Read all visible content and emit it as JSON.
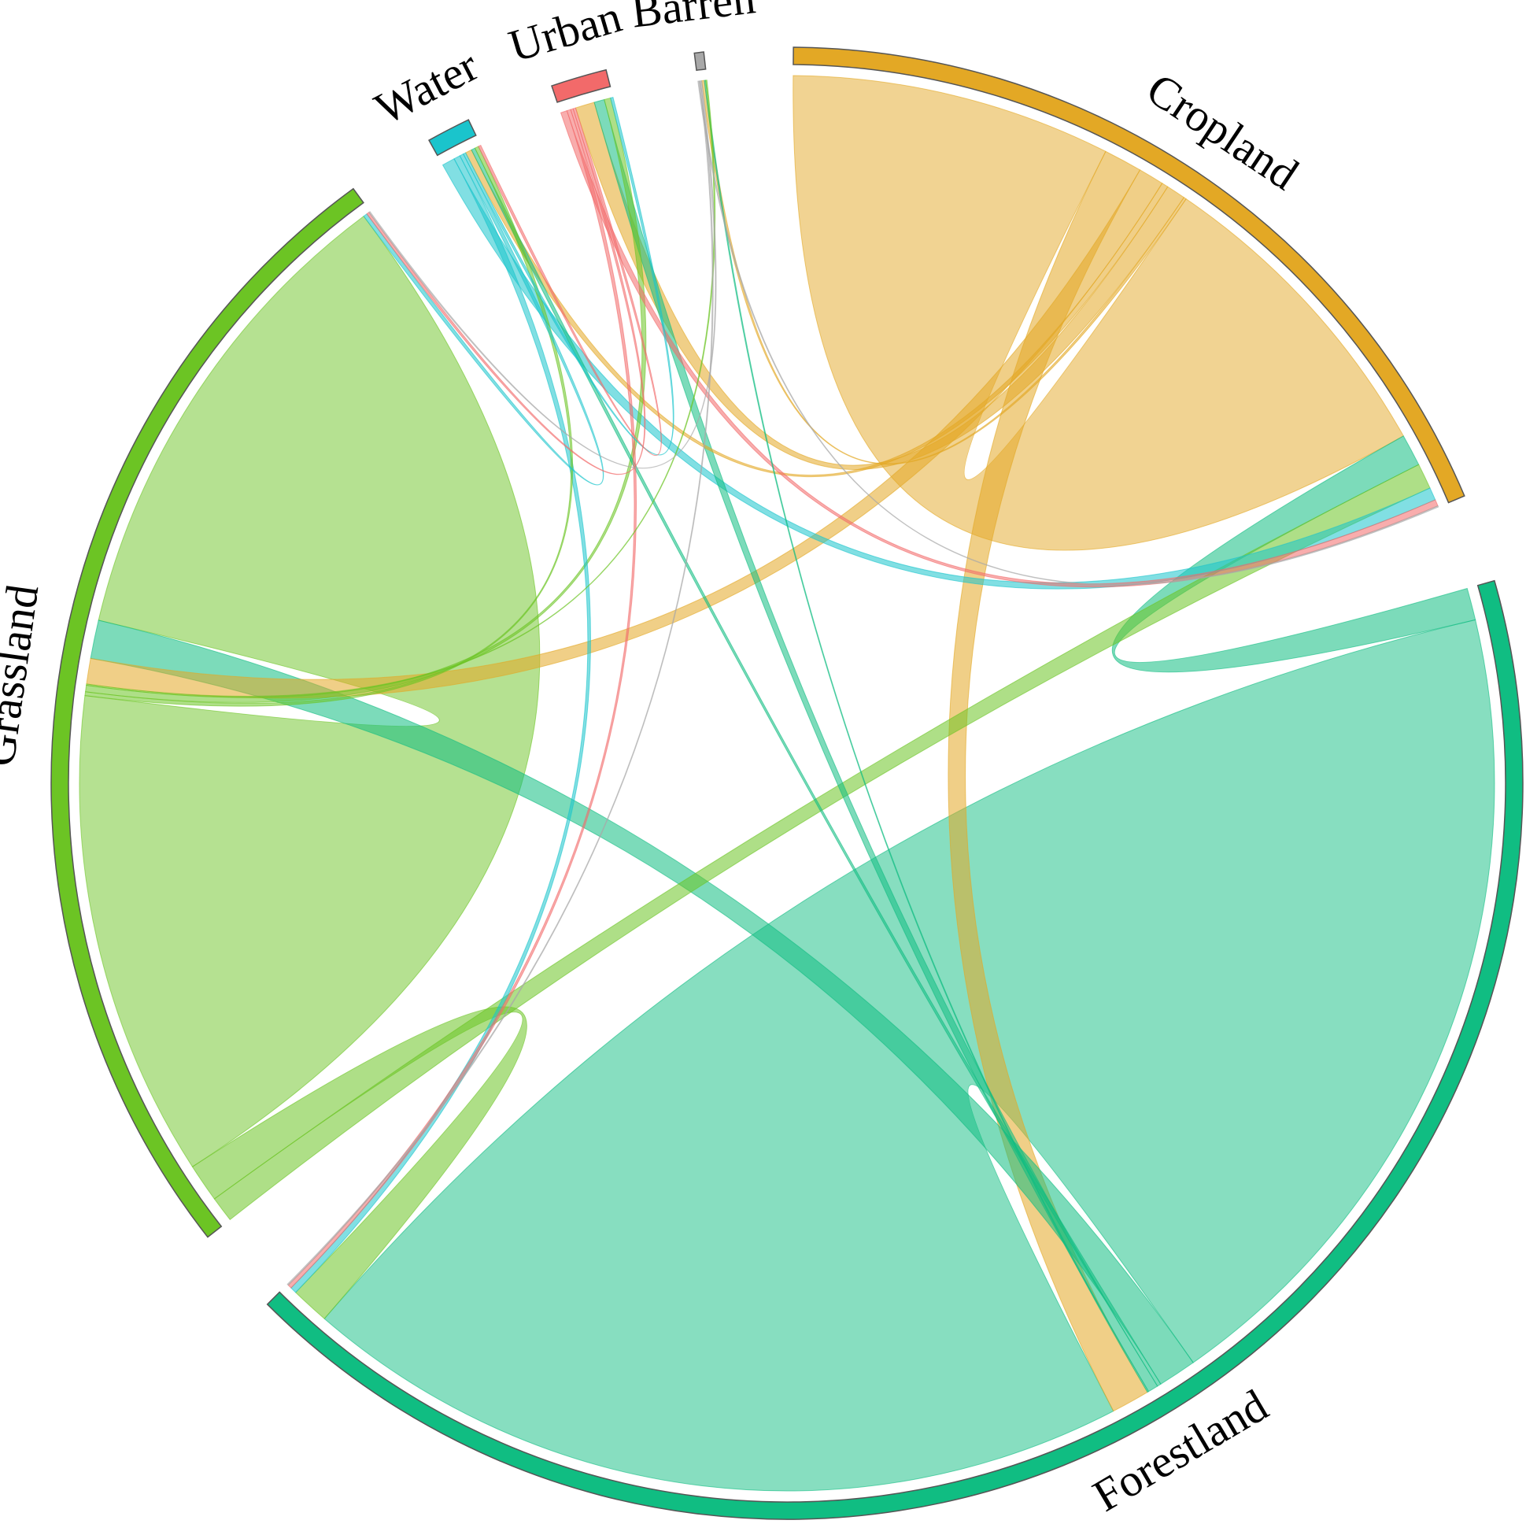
{
  "chart_data": {
    "type": "chord",
    "categories": [
      "Cropland",
      "Forestland",
      "Grassland",
      "Water",
      "Urban",
      "Barren"
    ],
    "colors": [
      "#e3a825",
      "#10bd82",
      "#6cc424",
      "#1ac4cc",
      "#f26a6a",
      "#a8a8a8"
    ],
    "matrix": [
      [
        25,
        3,
        2,
        0.5,
        1.5,
        0.2
      ],
      [
        2.5,
        65,
        3,
        0.3,
        0.8,
        0.1
      ],
      [
        2,
        3,
        38,
        0.3,
        0.5,
        0.1
      ],
      [
        1,
        0.5,
        0.3,
        0,
        0.2,
        0
      ],
      [
        0.5,
        0.3,
        0.2,
        0.2,
        0,
        0
      ],
      [
        0.1,
        0.1,
        0.1,
        0,
        0,
        0
      ]
    ]
  }
}
